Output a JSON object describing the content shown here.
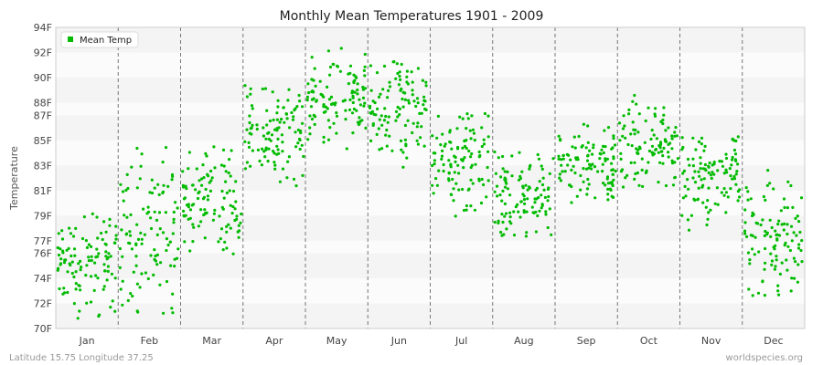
{
  "chart_data": {
    "type": "scatter",
    "title": "Monthly Mean Temperatures 1901 - 2009",
    "ylabel": "Temperature",
    "xlabel": "",
    "y_unit": "F",
    "y_ticks": [
      {
        "label": "70F",
        "value": 70
      },
      {
        "label": "72F",
        "value": 72
      },
      {
        "label": "74F",
        "value": 74
      },
      {
        "label": "76F",
        "value": 76
      },
      {
        "label": "77F",
        "value": 77
      },
      {
        "label": "79F",
        "value": 79
      },
      {
        "label": "81F",
        "value": 81
      },
      {
        "label": "83F",
        "value": 83
      },
      {
        "label": "85F",
        "value": 85
      },
      {
        "label": "87F",
        "value": 87
      },
      {
        "label": "88F",
        "value": 88
      },
      {
        "label": "90F",
        "value": 90
      },
      {
        "label": "92F",
        "value": 92
      },
      {
        "label": "94F",
        "value": 94
      }
    ],
    "ylim": [
      70,
      94
    ],
    "months": [
      "Jan",
      "Feb",
      "Mar",
      "Apr",
      "May",
      "Jun",
      "Jul",
      "Aug",
      "Sep",
      "Oct",
      "Nov",
      "Dec"
    ],
    "legend": {
      "label": "Mean Temp",
      "position": "top-left"
    },
    "series_color": "#00bb00",
    "grid": true,
    "years_per_month": 109,
    "monthly_stats": [
      {
        "month": "Jan",
        "min": 70.7,
        "max": 79.2,
        "mean": 75.2
      },
      {
        "month": "Feb",
        "min": 71.0,
        "max": 84.8,
        "mean": 77.5
      },
      {
        "month": "Mar",
        "min": 75.8,
        "max": 84.6,
        "mean": 80.2
      },
      {
        "month": "Apr",
        "min": 81.1,
        "max": 89.4,
        "mean": 85.6
      },
      {
        "month": "May",
        "min": 84.3,
        "max": 92.4,
        "mean": 87.9
      },
      {
        "month": "Jun",
        "min": 82.6,
        "max": 91.4,
        "mean": 87.6
      },
      {
        "month": "Jul",
        "min": 78.6,
        "max": 87.2,
        "mean": 83.4
      },
      {
        "month": "Aug",
        "min": 77.2,
        "max": 84.1,
        "mean": 80.7
      },
      {
        "month": "Sep",
        "min": 79.8,
        "max": 86.3,
        "mean": 83.1
      },
      {
        "month": "Oct",
        "min": 81.2,
        "max": 88.6,
        "mean": 84.7
      },
      {
        "month": "Nov",
        "min": 77.2,
        "max": 85.3,
        "mean": 82.3
      },
      {
        "month": "Dec",
        "min": 72.6,
        "max": 82.8,
        "mean": 77.4
      }
    ]
  },
  "footer": {
    "location": "Latitude 15.75 Longitude 37.25",
    "source": "worldspecies.org"
  }
}
